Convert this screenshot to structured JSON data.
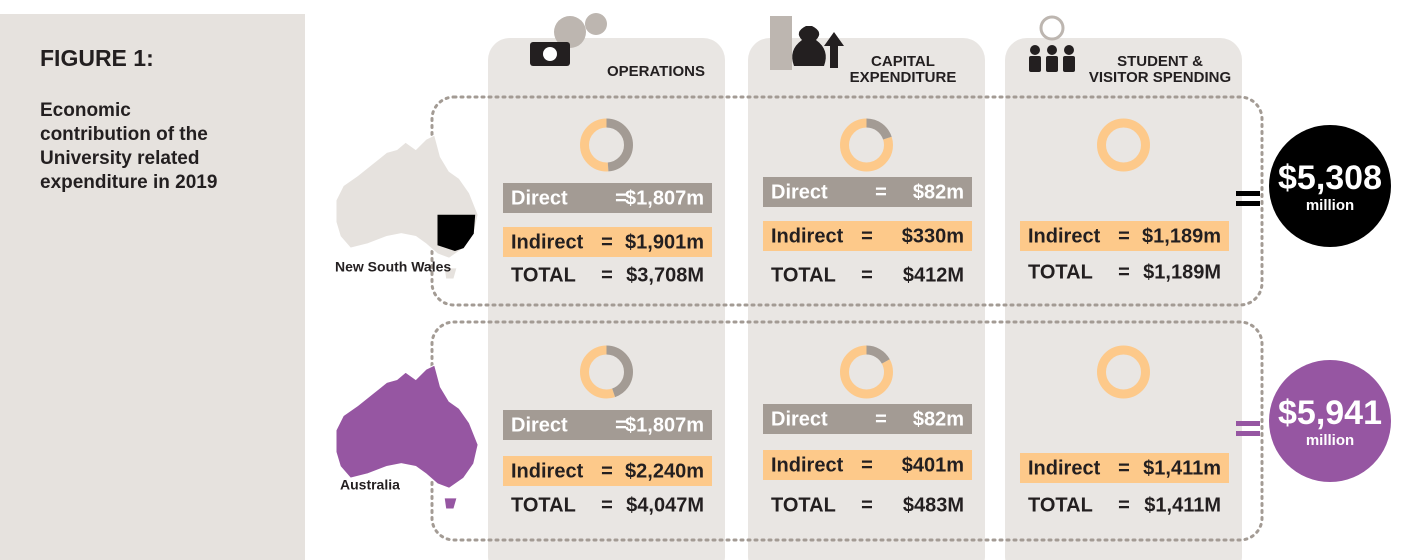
{
  "figure": {
    "label": "FIGURE 1:",
    "caption": [
      "Economic",
      "contribution of the",
      "University related",
      "expenditure in 2019"
    ]
  },
  "columns": [
    [
      "OPERATIONS"
    ],
    [
      "CAPITAL",
      "EXPENDITURE"
    ],
    [
      "STUDENT &",
      "VISITOR SPENDING"
    ]
  ],
  "regions": [
    {
      "name": "New South Wales",
      "total": {
        "value": 5308,
        "label": "$5,308"
      },
      "unit": "million",
      "color": "#000000",
      "cells": [
        {
          "direct": {
            "label": "Direct",
            "eq": "=",
            "value": 1807,
            "text": "$1,807m"
          },
          "indirect": {
            "label": "Indirect",
            "eq": "=",
            "value": 1901,
            "text": "$1,901m"
          },
          "total": {
            "label": "TOTAL",
            "eq": "=",
            "value": 3708,
            "text": "$3,708M"
          }
        },
        {
          "direct": {
            "label": "Direct",
            "eq": "=",
            "value": 82,
            "text": "$82m"
          },
          "indirect": {
            "label": "Indirect",
            "eq": "=",
            "value": 330,
            "text": "$330m"
          },
          "total": {
            "label": "TOTAL",
            "eq": "=",
            "value": 412,
            "text": "$412M"
          }
        },
        {
          "indirect": {
            "label": "Indirect",
            "eq": "=",
            "value": 1189,
            "text": "$1,189m"
          },
          "total": {
            "label": "TOTAL",
            "eq": "=",
            "value": 1189,
            "text": "$1,189M"
          }
        }
      ]
    },
    {
      "name": "Australia",
      "total": {
        "value": 5941,
        "label": "$5,941"
      },
      "unit": "million",
      "color": "#9656a2",
      "cells": [
        {
          "direct": {
            "label": "Direct",
            "eq": "=",
            "value": 1807,
            "text": "$1,807m"
          },
          "indirect": {
            "label": "Indirect",
            "eq": "=",
            "value": 2240,
            "text": "$2,240m"
          },
          "total": {
            "label": "TOTAL",
            "eq": "=",
            "value": 4047,
            "text": "$4,047M"
          }
        },
        {
          "direct": {
            "label": "Direct",
            "eq": "=",
            "value": 82,
            "text": "$82m"
          },
          "indirect": {
            "label": "Indirect",
            "eq": "=",
            "value": 401,
            "text": "$401m"
          },
          "total": {
            "label": "TOTAL",
            "eq": "=",
            "value": 483,
            "text": "$483M"
          }
        },
        {
          "indirect": {
            "label": "Indirect",
            "eq": "=",
            "value": 1411,
            "text": "$1,411m"
          },
          "total": {
            "label": "TOTAL",
            "eq": "=",
            "value": 1411,
            "text": "$1,411M"
          }
        }
      ]
    }
  ]
}
